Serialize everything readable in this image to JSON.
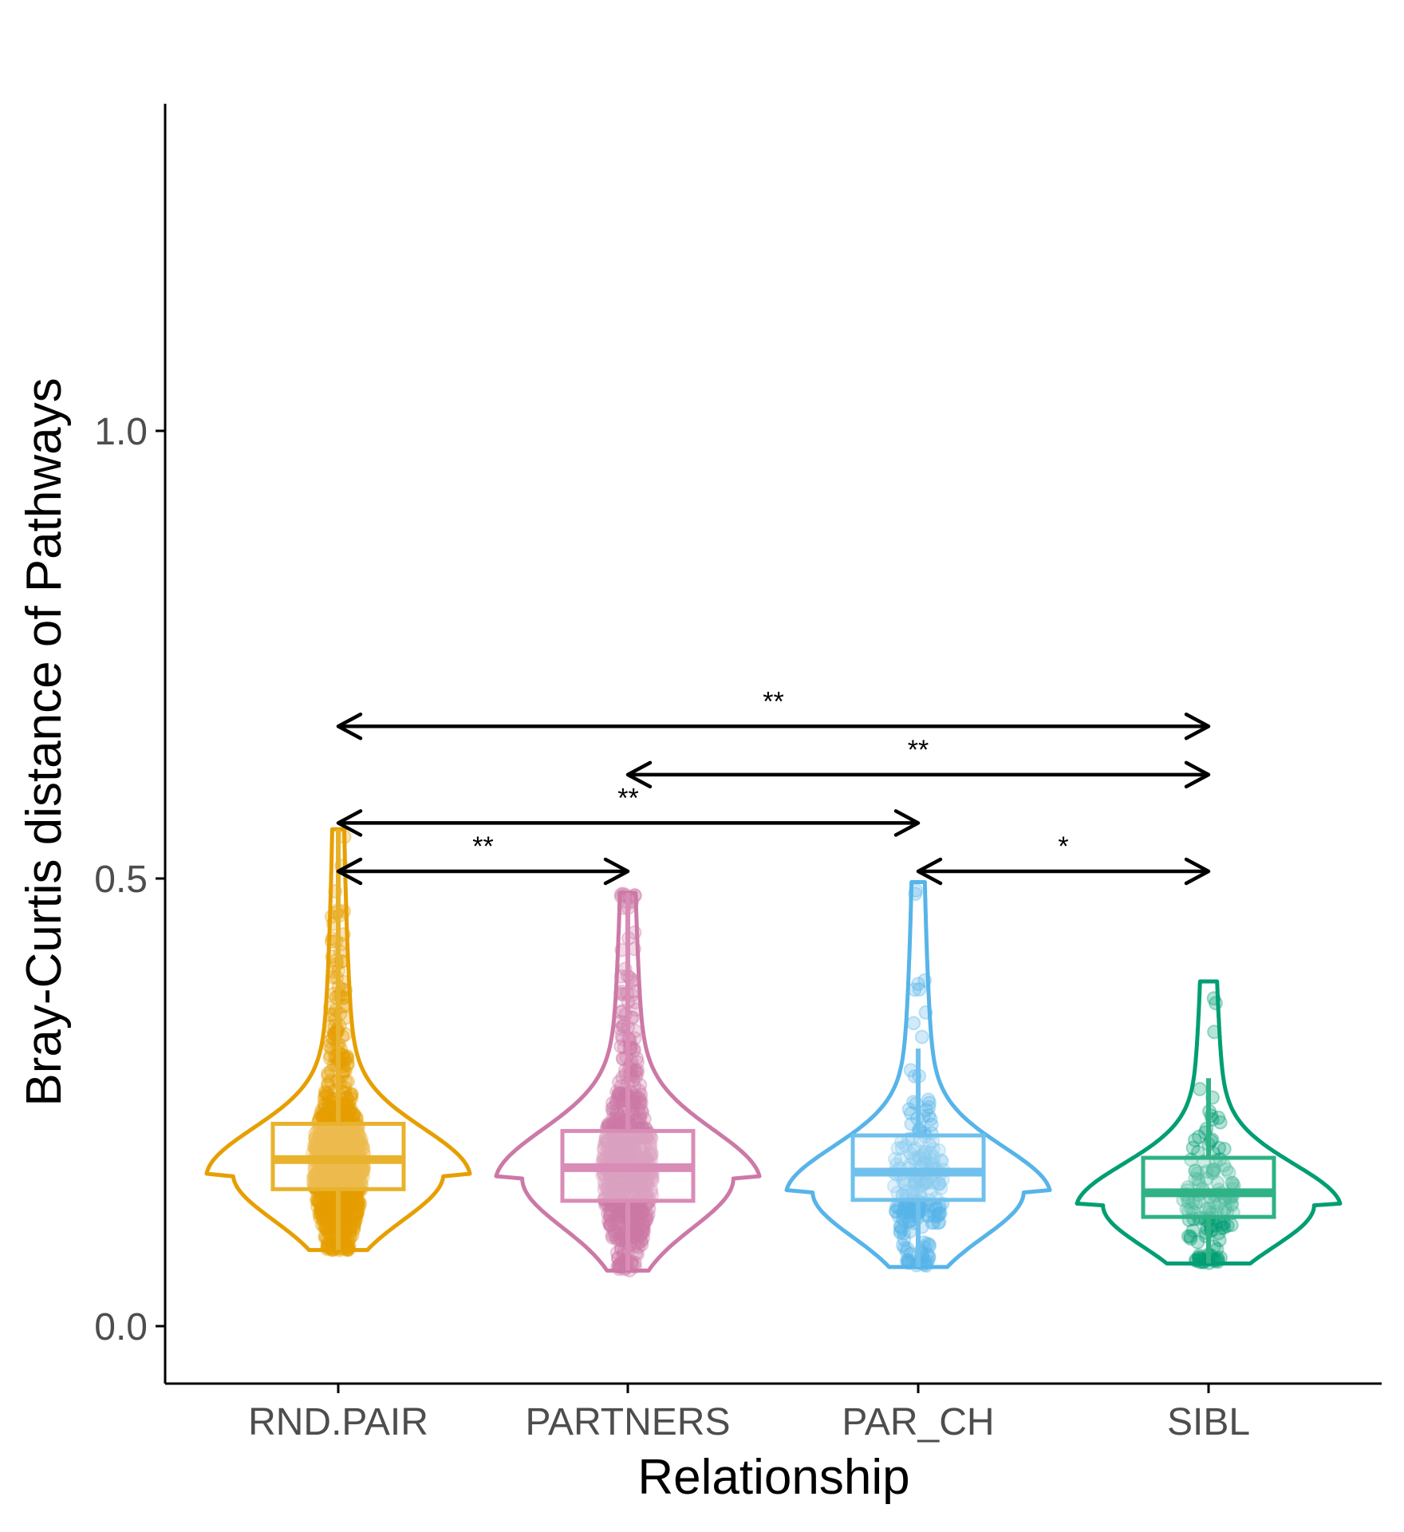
{
  "chart_data": {
    "type": "violin",
    "xlabel": "Relationship",
    "ylabel": "Bray-Curtis distance of Pathways",
    "ylim": [
      -0.06,
      1.38
    ],
    "yticks": [
      0.0,
      0.5,
      1.0
    ],
    "ytick_labels": [
      "0.0",
      "0.5",
      "1.0"
    ],
    "categories": [
      "RND.PAIR",
      "PARTNERS",
      "PAR_CH",
      "SIBL"
    ],
    "grid": false,
    "legend": "none",
    "colors": {
      "RND.PAIR": "#E69F00",
      "PARTNERS": "#CC79A7",
      "PAR_CH": "#56B4E9",
      "SIBL": "#009E73"
    },
    "box_colors": {
      "RND.PAIR": "#E8B22C",
      "PARTNERS": "#D98CB6",
      "PAR_CH": "#6FC0EC",
      "SIBL": "#2FB285"
    },
    "groups": [
      {
        "name": "RND.PAIR",
        "min": 0.085,
        "q1": 0.153,
        "median": 0.186,
        "q3": 0.226,
        "max": 0.555,
        "whisker_low": 0.085,
        "whisker_high": 0.555,
        "mode": 0.17,
        "n_points": 900
      },
      {
        "name": "PARTNERS",
        "min": 0.062,
        "q1": 0.14,
        "median": 0.177,
        "q3": 0.218,
        "max": 0.484,
        "whisker_low": 0.062,
        "whisker_high": 0.484,
        "mode": 0.165,
        "n_points": 700
      },
      {
        "name": "PAR_CH",
        "min": 0.066,
        "q1": 0.141,
        "median": 0.172,
        "q3": 0.213,
        "max": 0.496,
        "whisker_low": 0.066,
        "whisker_high": 0.31,
        "mode": 0.15,
        "n_points": 220
      },
      {
        "name": "SIBL",
        "min": 0.07,
        "q1": 0.122,
        "median": 0.149,
        "q3": 0.188,
        "max": 0.385,
        "whisker_low": 0.07,
        "whisker_high": 0.277,
        "mode": 0.135,
        "n_points": 140
      }
    ],
    "comparisons": [
      {
        "from": "RND.PAIR",
        "to": "PARTNERS",
        "y": 0.508,
        "label": "**"
      },
      {
        "from": "PAR_CH",
        "to": "SIBL",
        "y": 0.508,
        "label": "*"
      },
      {
        "from": "RND.PAIR",
        "to": "PAR_CH",
        "y": 0.562,
        "label": "**"
      },
      {
        "from": "PARTNERS",
        "to": "SIBL",
        "y": 0.616,
        "label": "**"
      },
      {
        "from": "RND.PAIR",
        "to": "SIBL",
        "y": 0.67,
        "label": "**"
      }
    ]
  }
}
